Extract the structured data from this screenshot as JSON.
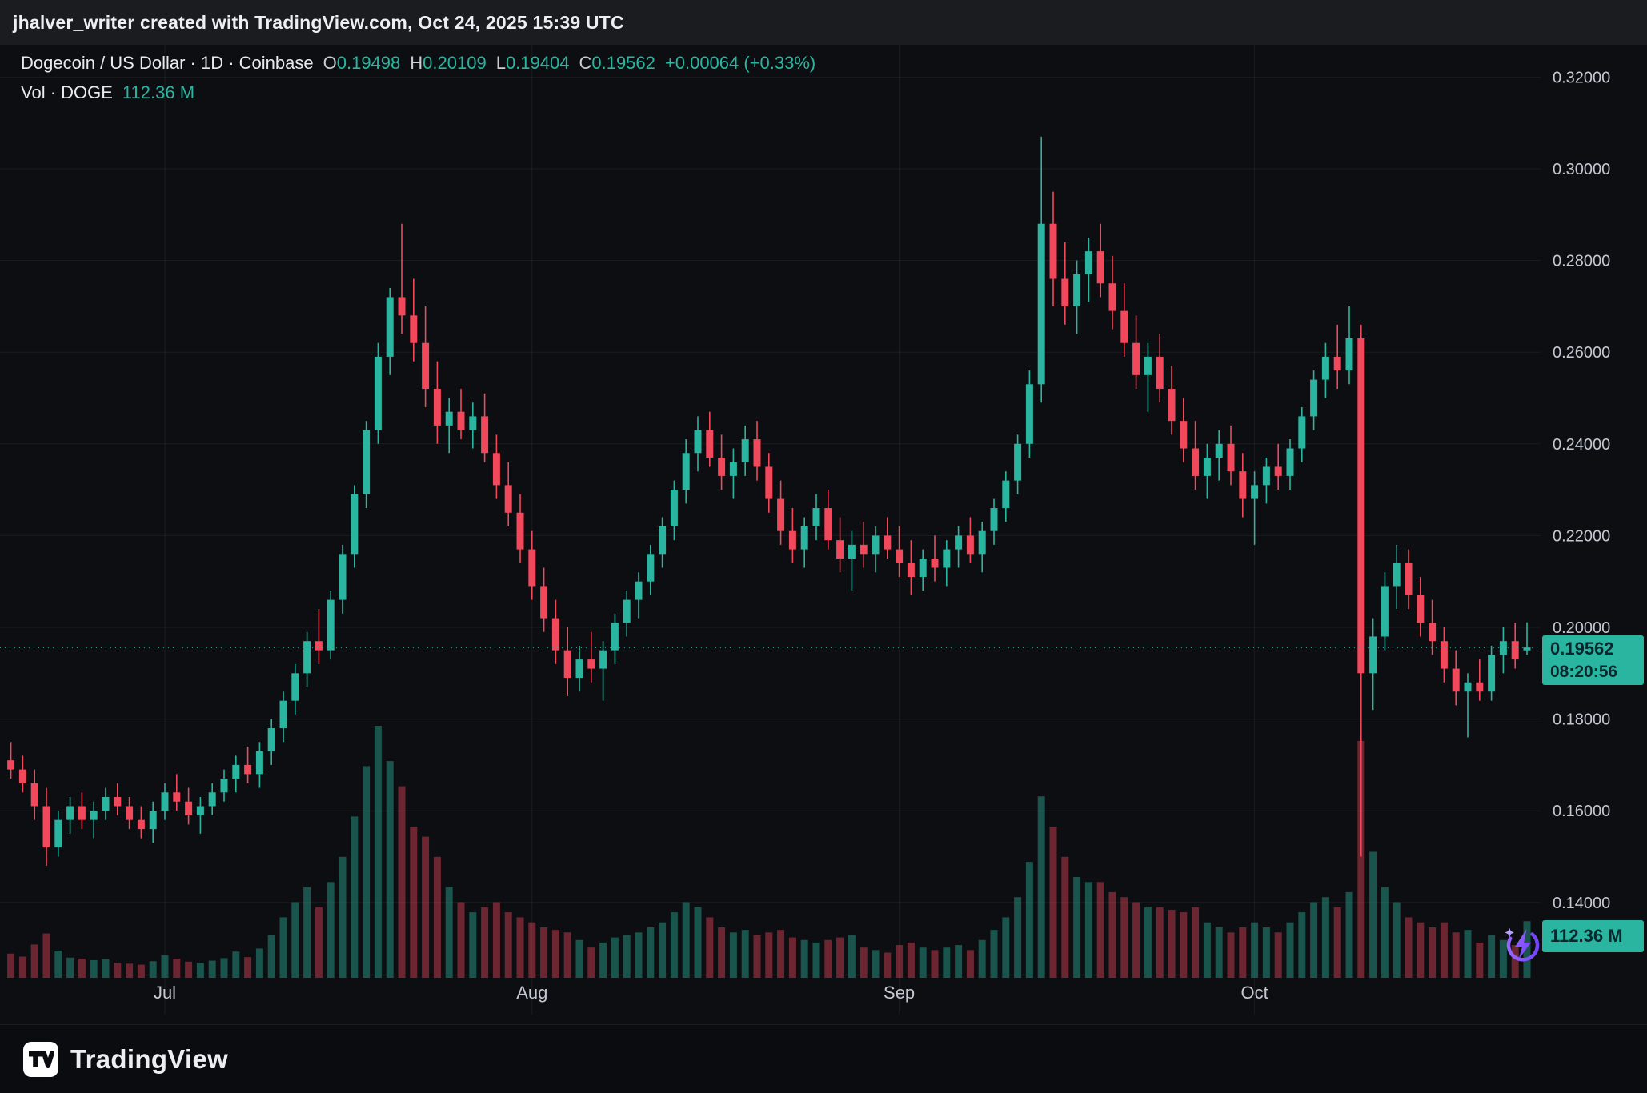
{
  "topbar": {
    "attribution": "jhalver_writer created with TradingView.com, Oct 24, 2025 15:39 UTC"
  },
  "legend": {
    "symbol_title": "Dogecoin / US Dollar · 1D · Coinbase",
    "ohlc": [
      {
        "label": "O",
        "value": "0.19498"
      },
      {
        "label": "H",
        "value": "0.20109"
      },
      {
        "label": "L",
        "value": "0.19404"
      },
      {
        "label": "C",
        "value": "0.19562"
      }
    ],
    "change": "+0.00064 (+0.33%)",
    "volume_label": "Vol · DOGE",
    "volume_value": "112.36 M"
  },
  "price_axis": {
    "last_price": "0.19562",
    "countdown": "08:20:56",
    "volume_badge": "112.36 M"
  },
  "footer": {
    "brand": "TradingView"
  },
  "icons": {
    "boost_icon": "purple-lightning-boost",
    "footer_logo": "tradingview-mark"
  },
  "colors": {
    "up": "#2ab5a0",
    "down": "#f1485c",
    "badge_text": "#07272e",
    "accent_purple": "#8a5cf6",
    "background": "#0d0e12",
    "topbar_background": "#1b1c20",
    "axis_text": "#c3c8d1"
  },
  "chart_data": {
    "type": "candlestick+volume",
    "title": "Dogecoin / US Dollar",
    "timeframe": "1D",
    "exchange": "Coinbase",
    "last": {
      "open": 0.19498,
      "high": 0.20109,
      "low": 0.19404,
      "close": 0.19562,
      "change": "+0.00064",
      "change_pct": "+0.33%",
      "volume": "112.36 M",
      "countdown": "08:20:56"
    },
    "y_axis": {
      "min": 0.121,
      "max": 0.327,
      "ticks": [
        {
          "value": 0.32,
          "label": "0.32000"
        },
        {
          "value": 0.3,
          "label": "0.30000"
        },
        {
          "value": 0.28,
          "label": "0.28000"
        },
        {
          "value": 0.26,
          "label": "0.26000"
        },
        {
          "value": 0.24,
          "label": "0.24000"
        },
        {
          "value": 0.22,
          "label": "0.22000"
        },
        {
          "value": 0.2,
          "label": "0.20000"
        },
        {
          "value": 0.18,
          "label": "0.18000"
        },
        {
          "value": 0.16,
          "label": "0.16000"
        },
        {
          "value": 0.14,
          "label": "0.14000"
        }
      ]
    },
    "x_axis": {
      "ticks": [
        {
          "label": "Jul",
          "index": 13
        },
        {
          "label": "Aug",
          "index": 44
        },
        {
          "label": "Sep",
          "index": 75
        },
        {
          "label": "Oct",
          "index": 105
        }
      ]
    },
    "ohlc_format": [
      "date",
      "open",
      "high",
      "low",
      "close",
      "volume_millions"
    ],
    "candles": [
      [
        "2025-06-18",
        0.171,
        0.175,
        0.167,
        0.169,
        48
      ],
      [
        "2025-06-19",
        0.169,
        0.172,
        0.164,
        0.166,
        42
      ],
      [
        "2025-06-20",
        0.166,
        0.169,
        0.158,
        0.161,
        66
      ],
      [
        "2025-06-21",
        0.161,
        0.165,
        0.148,
        0.152,
        88
      ],
      [
        "2025-06-22",
        0.152,
        0.16,
        0.15,
        0.158,
        54
      ],
      [
        "2025-06-23",
        0.158,
        0.163,
        0.155,
        0.161,
        40
      ],
      [
        "2025-06-24",
        0.161,
        0.164,
        0.156,
        0.158,
        38
      ],
      [
        "2025-06-25",
        0.158,
        0.162,
        0.154,
        0.16,
        35
      ],
      [
        "2025-06-26",
        0.16,
        0.165,
        0.158,
        0.163,
        37
      ],
      [
        "2025-06-27",
        0.163,
        0.166,
        0.159,
        0.161,
        30
      ],
      [
        "2025-06-28",
        0.161,
        0.163,
        0.156,
        0.158,
        28
      ],
      [
        "2025-06-29",
        0.158,
        0.161,
        0.154,
        0.156,
        26
      ],
      [
        "2025-06-30",
        0.156,
        0.162,
        0.153,
        0.16,
        33
      ],
      [
        "2025-07-01",
        0.16,
        0.166,
        0.158,
        0.164,
        45
      ],
      [
        "2025-07-02",
        0.164,
        0.168,
        0.16,
        0.162,
        38
      ],
      [
        "2025-07-03",
        0.162,
        0.165,
        0.157,
        0.159,
        32
      ],
      [
        "2025-07-04",
        0.159,
        0.163,
        0.155,
        0.161,
        30
      ],
      [
        "2025-07-05",
        0.161,
        0.166,
        0.159,
        0.164,
        34
      ],
      [
        "2025-07-06",
        0.164,
        0.169,
        0.162,
        0.167,
        39
      ],
      [
        "2025-07-07",
        0.167,
        0.172,
        0.164,
        0.17,
        52
      ],
      [
        "2025-07-08",
        0.17,
        0.174,
        0.166,
        0.168,
        41
      ],
      [
        "2025-07-09",
        0.168,
        0.175,
        0.165,
        0.173,
        58
      ],
      [
        "2025-07-10",
        0.173,
        0.18,
        0.17,
        0.178,
        85
      ],
      [
        "2025-07-11",
        0.178,
        0.186,
        0.175,
        0.184,
        120
      ],
      [
        "2025-07-12",
        0.184,
        0.192,
        0.181,
        0.19,
        150
      ],
      [
        "2025-07-13",
        0.19,
        0.199,
        0.187,
        0.197,
        180
      ],
      [
        "2025-07-14",
        0.197,
        0.204,
        0.192,
        0.195,
        140
      ],
      [
        "2025-07-15",
        0.195,
        0.208,
        0.193,
        0.206,
        190
      ],
      [
        "2025-07-16",
        0.206,
        0.218,
        0.203,
        0.216,
        240
      ],
      [
        "2025-07-17",
        0.216,
        0.231,
        0.213,
        0.229,
        320
      ],
      [
        "2025-07-18",
        0.229,
        0.245,
        0.226,
        0.243,
        420
      ],
      [
        "2025-07-19",
        0.243,
        0.262,
        0.24,
        0.259,
        500
      ],
      [
        "2025-07-20",
        0.259,
        0.274,
        0.255,
        0.272,
        430
      ],
      [
        "2025-07-21",
        0.272,
        0.288,
        0.264,
        0.268,
        380
      ],
      [
        "2025-07-22",
        0.268,
        0.276,
        0.258,
        0.262,
        300
      ],
      [
        "2025-07-23",
        0.262,
        0.27,
        0.248,
        0.252,
        280
      ],
      [
        "2025-07-24",
        0.252,
        0.258,
        0.24,
        0.244,
        240
      ],
      [
        "2025-07-25",
        0.244,
        0.25,
        0.238,
        0.247,
        180
      ],
      [
        "2025-07-26",
        0.247,
        0.252,
        0.241,
        0.243,
        150
      ],
      [
        "2025-07-27",
        0.243,
        0.249,
        0.239,
        0.246,
        130
      ],
      [
        "2025-07-28",
        0.246,
        0.251,
        0.236,
        0.238,
        140
      ],
      [
        "2025-07-29",
        0.238,
        0.242,
        0.228,
        0.231,
        150
      ],
      [
        "2025-07-30",
        0.231,
        0.236,
        0.222,
        0.225,
        130
      ],
      [
        "2025-07-31",
        0.225,
        0.229,
        0.214,
        0.217,
        120
      ],
      [
        "2025-08-01",
        0.217,
        0.221,
        0.206,
        0.209,
        110
      ],
      [
        "2025-08-02",
        0.209,
        0.213,
        0.199,
        0.202,
        100
      ],
      [
        "2025-08-03",
        0.202,
        0.206,
        0.192,
        0.195,
        95
      ],
      [
        "2025-08-04",
        0.195,
        0.2,
        0.185,
        0.189,
        90
      ],
      [
        "2025-08-05",
        0.189,
        0.196,
        0.186,
        0.193,
        75
      ],
      [
        "2025-08-06",
        0.193,
        0.199,
        0.188,
        0.191,
        60
      ],
      [
        "2025-08-07",
        0.191,
        0.197,
        0.184,
        0.195,
        70
      ],
      [
        "2025-08-08",
        0.195,
        0.203,
        0.192,
        0.201,
        80
      ],
      [
        "2025-08-09",
        0.201,
        0.208,
        0.198,
        0.206,
        85
      ],
      [
        "2025-08-10",
        0.206,
        0.212,
        0.202,
        0.21,
        90
      ],
      [
        "2025-08-11",
        0.21,
        0.218,
        0.207,
        0.216,
        100
      ],
      [
        "2025-08-12",
        0.216,
        0.224,
        0.213,
        0.222,
        110
      ],
      [
        "2025-08-13",
        0.222,
        0.232,
        0.219,
        0.23,
        130
      ],
      [
        "2025-08-14",
        0.23,
        0.241,
        0.227,
        0.238,
        150
      ],
      [
        "2025-08-15",
        0.238,
        0.246,
        0.234,
        0.243,
        140
      ],
      [
        "2025-08-16",
        0.243,
        0.247,
        0.235,
        0.237,
        120
      ],
      [
        "2025-08-17",
        0.237,
        0.242,
        0.23,
        0.233,
        100
      ],
      [
        "2025-08-18",
        0.233,
        0.239,
        0.228,
        0.236,
        90
      ],
      [
        "2025-08-19",
        0.236,
        0.244,
        0.233,
        0.241,
        95
      ],
      [
        "2025-08-20",
        0.241,
        0.245,
        0.232,
        0.235,
        85
      ],
      [
        "2025-08-21",
        0.235,
        0.238,
        0.225,
        0.228,
        90
      ],
      [
        "2025-08-22",
        0.228,
        0.232,
        0.218,
        0.221,
        95
      ],
      [
        "2025-08-23",
        0.221,
        0.226,
        0.214,
        0.217,
        80
      ],
      [
        "2025-08-24",
        0.217,
        0.224,
        0.213,
        0.222,
        75
      ],
      [
        "2025-08-25",
        0.222,
        0.229,
        0.219,
        0.226,
        70
      ],
      [
        "2025-08-26",
        0.226,
        0.23,
        0.217,
        0.219,
        75
      ],
      [
        "2025-08-27",
        0.219,
        0.224,
        0.212,
        0.215,
        80
      ],
      [
        "2025-08-28",
        0.215,
        0.221,
        0.208,
        0.218,
        85
      ],
      [
        "2025-08-29",
        0.218,
        0.223,
        0.213,
        0.216,
        60
      ],
      [
        "2025-08-30",
        0.216,
        0.222,
        0.212,
        0.22,
        55
      ],
      [
        "2025-08-31",
        0.22,
        0.224,
        0.215,
        0.217,
        50
      ],
      [
        "2025-09-01",
        0.217,
        0.222,
        0.211,
        0.214,
        65
      ],
      [
        "2025-09-02",
        0.214,
        0.219,
        0.207,
        0.211,
        70
      ],
      [
        "2025-09-03",
        0.211,
        0.217,
        0.208,
        0.215,
        60
      ],
      [
        "2025-09-04",
        0.215,
        0.22,
        0.21,
        0.213,
        55
      ],
      [
        "2025-09-05",
        0.213,
        0.219,
        0.209,
        0.217,
        60
      ],
      [
        "2025-09-06",
        0.217,
        0.222,
        0.213,
        0.22,
        65
      ],
      [
        "2025-09-07",
        0.22,
        0.224,
        0.214,
        0.216,
        55
      ],
      [
        "2025-09-08",
        0.216,
        0.223,
        0.212,
        0.221,
        75
      ],
      [
        "2025-09-09",
        0.221,
        0.228,
        0.218,
        0.226,
        95
      ],
      [
        "2025-09-10",
        0.226,
        0.234,
        0.223,
        0.232,
        120
      ],
      [
        "2025-09-11",
        0.232,
        0.242,
        0.229,
        0.24,
        160
      ],
      [
        "2025-09-12",
        0.24,
        0.256,
        0.237,
        0.253,
        230
      ],
      [
        "2025-09-13",
        0.253,
        0.307,
        0.249,
        0.288,
        360
      ],
      [
        "2025-09-14",
        0.288,
        0.295,
        0.27,
        0.276,
        300
      ],
      [
        "2025-09-15",
        0.276,
        0.284,
        0.266,
        0.27,
        240
      ],
      [
        "2025-09-16",
        0.27,
        0.28,
        0.264,
        0.277,
        200
      ],
      [
        "2025-09-17",
        0.277,
        0.285,
        0.271,
        0.282,
        190
      ],
      [
        "2025-09-18",
        0.282,
        0.288,
        0.272,
        0.275,
        190
      ],
      [
        "2025-09-19",
        0.275,
        0.281,
        0.265,
        0.269,
        170
      ],
      [
        "2025-09-20",
        0.269,
        0.275,
        0.259,
        0.262,
        160
      ],
      [
        "2025-09-21",
        0.262,
        0.268,
        0.252,
        0.255,
        150
      ],
      [
        "2025-09-22",
        0.255,
        0.262,
        0.247,
        0.259,
        140
      ],
      [
        "2025-09-23",
        0.259,
        0.264,
        0.249,
        0.252,
        140
      ],
      [
        "2025-09-24",
        0.252,
        0.257,
        0.242,
        0.245,
        135
      ],
      [
        "2025-09-25",
        0.245,
        0.25,
        0.236,
        0.239,
        130
      ],
      [
        "2025-09-26",
        0.239,
        0.245,
        0.23,
        0.233,
        140
      ],
      [
        "2025-09-27",
        0.233,
        0.24,
        0.228,
        0.237,
        110
      ],
      [
        "2025-09-28",
        0.237,
        0.243,
        0.232,
        0.24,
        100
      ],
      [
        "2025-09-29",
        0.24,
        0.244,
        0.231,
        0.234,
        90
      ],
      [
        "2025-09-30",
        0.234,
        0.238,
        0.224,
        0.228,
        100
      ],
      [
        "2025-10-01",
        0.228,
        0.234,
        0.218,
        0.231,
        110
      ],
      [
        "2025-10-02",
        0.231,
        0.237,
        0.227,
        0.235,
        100
      ],
      [
        "2025-10-03",
        0.235,
        0.24,
        0.23,
        0.233,
        90
      ],
      [
        "2025-10-04",
        0.233,
        0.241,
        0.23,
        0.239,
        110
      ],
      [
        "2025-10-05",
        0.239,
        0.248,
        0.236,
        0.246,
        130
      ],
      [
        "2025-10-06",
        0.246,
        0.256,
        0.243,
        0.254,
        150
      ],
      [
        "2025-10-07",
        0.254,
        0.262,
        0.25,
        0.259,
        160
      ],
      [
        "2025-10-08",
        0.259,
        0.266,
        0.252,
        0.256,
        140
      ],
      [
        "2025-10-09",
        0.256,
        0.27,
        0.253,
        0.263,
        170
      ],
      [
        "2025-10-10",
        0.263,
        0.266,
        0.15,
        0.19,
        470
      ],
      [
        "2025-10-11",
        0.19,
        0.202,
        0.182,
        0.198,
        250
      ],
      [
        "2025-10-12",
        0.198,
        0.212,
        0.195,
        0.209,
        180
      ],
      [
        "2025-10-13",
        0.209,
        0.218,
        0.204,
        0.214,
        150
      ],
      [
        "2025-10-14",
        0.214,
        0.217,
        0.204,
        0.207,
        120
      ],
      [
        "2025-10-15",
        0.207,
        0.211,
        0.198,
        0.201,
        110
      ],
      [
        "2025-10-16",
        0.201,
        0.206,
        0.194,
        0.197,
        100
      ],
      [
        "2025-10-17",
        0.197,
        0.2,
        0.188,
        0.191,
        110
      ],
      [
        "2025-10-18",
        0.191,
        0.195,
        0.183,
        0.186,
        90
      ],
      [
        "2025-10-19",
        0.186,
        0.19,
        0.176,
        0.188,
        95
      ],
      [
        "2025-10-20",
        0.188,
        0.193,
        0.184,
        0.186,
        70
      ],
      [
        "2025-10-21",
        0.186,
        0.196,
        0.184,
        0.194,
        85
      ],
      [
        "2025-10-22",
        0.194,
        0.2,
        0.19,
        0.197,
        75
      ],
      [
        "2025-10-23",
        0.197,
        0.201,
        0.191,
        0.193,
        65
      ],
      [
        "2025-10-24",
        0.19498,
        0.20109,
        0.19404,
        0.19562,
        112.36
      ]
    ]
  }
}
